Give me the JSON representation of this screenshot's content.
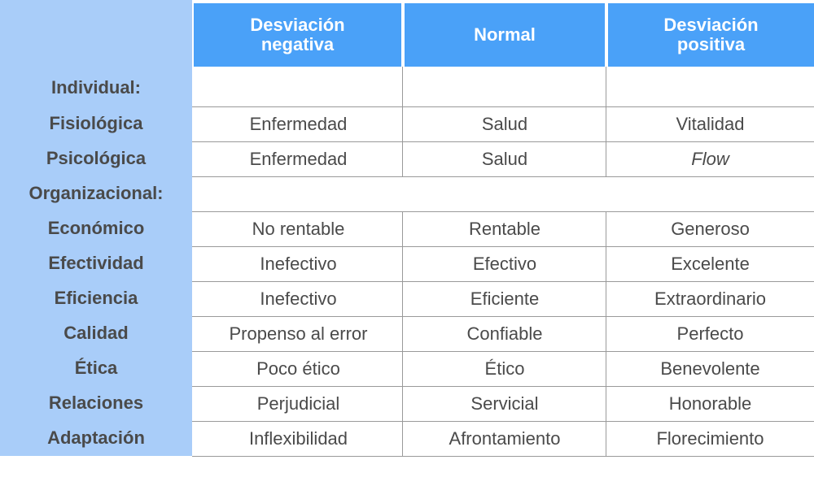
{
  "columns": [
    "Desviación\nnegativa",
    "Normal",
    "Desviación\npositiva"
  ],
  "rows": [
    {
      "label": "Individual:",
      "cells": [
        "",
        "",
        ""
      ]
    },
    {
      "label": "Fisiológica",
      "cells": [
        "Enfermedad",
        "Salud",
        "Vitalidad"
      ]
    },
    {
      "label": "Psicológica",
      "cells": [
        "Enfermedad",
        "Salud",
        "Flow"
      ]
    },
    {
      "label": "Organizacional:",
      "cells": [
        "",
        "",
        ""
      ]
    },
    {
      "label": "Económico",
      "cells": [
        "No rentable",
        "Rentable",
        "Generoso"
      ]
    },
    {
      "label": "Efectividad",
      "cells": [
        "Inefectivo",
        "Efectivo",
        "Excelente"
      ]
    },
    {
      "label": "Eficiencia",
      "cells": [
        "Inefectivo",
        "Eficiente",
        "Extraordinario"
      ]
    },
    {
      "label": "Calidad",
      "cells": [
        "Propenso al error",
        "Confiable",
        "Perfecto"
      ]
    },
    {
      "label": "Ética",
      "cells": [
        "Poco ético",
        "Ético",
        "Benevolente"
      ]
    },
    {
      "label": "Relaciones",
      "cells": [
        "Perjudicial",
        "Servicial",
        "Honorable"
      ]
    },
    {
      "label": "Adaptación",
      "cells": [
        "Inflexibilidad",
        "Afrontamiento",
        "Florecimiento"
      ]
    }
  ],
  "colors": {
    "sidebar": "#a9cdf9",
    "header": "#4aa1f8",
    "text": "#4a4a4a",
    "rule": "#9a9a9a"
  }
}
